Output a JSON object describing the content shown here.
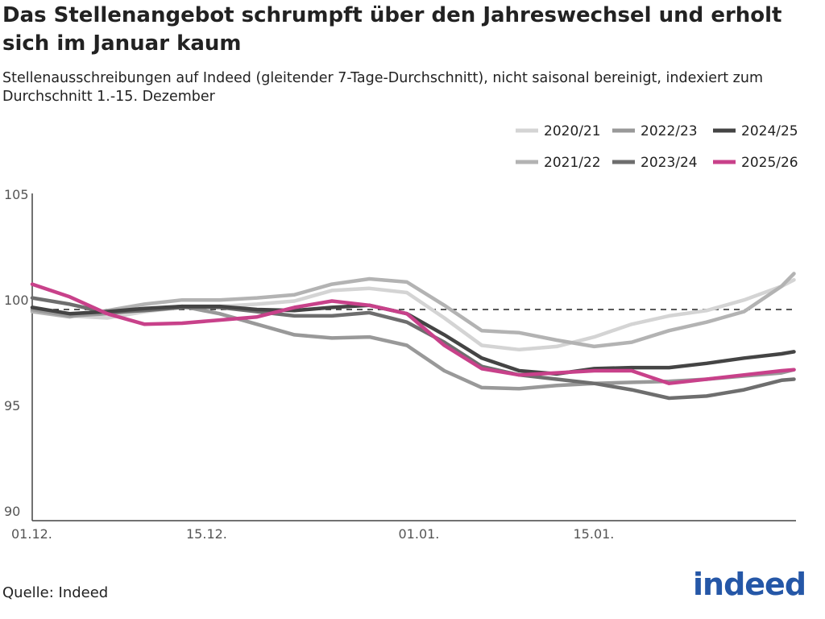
{
  "title": "Das Stellenangebot schrumpft über den Jahreswechsel und erholt sich im Januar kaum",
  "subtitle": "Stellenausschreibungen auf Indeed (gleitender 7-Tage-Durchschnitt), nicht saisonal bereinigt, indexiert zum Durchschnitt 1.-15. Dezember",
  "source": "Quelle: Indeed",
  "logo_text": "indeed",
  "colors": {
    "2020/21": "#d4d4d4",
    "2021/22": "#b3b3b3",
    "2022/23": "#999999",
    "2023/24": "#6e6e6e",
    "2024/25": "#444444",
    "2025/26": "#c8418a",
    "logo": "#2557a7"
  },
  "chart_data": {
    "type": "line",
    "title": "",
    "xlabel": "",
    "ylabel": "",
    "ylim": [
      90,
      105
    ],
    "yticks": [
      "90",
      "95",
      "100",
      "105"
    ],
    "xticks": [
      "01.12.",
      "15.12.",
      "01.01.",
      "15.01."
    ],
    "reference_line": 100,
    "grid": false,
    "legend_position": "top-right",
    "x": [
      "01.12.",
      "04.12.",
      "07.12.",
      "10.12.",
      "13.12.",
      "16.12.",
      "19.12.",
      "22.12.",
      "25.12.",
      "28.12.",
      "31.12.",
      "03.01.",
      "06.01.",
      "09.01.",
      "12.01.",
      "15.01.",
      "18.01.",
      "21.01.",
      "24.01.",
      "27.01.",
      "30.01.",
      "31.01."
    ],
    "series": [
      {
        "name": "2020/21",
        "values": [
          99.95,
          99.7,
          99.6,
          99.9,
          100.1,
          100.15,
          100.25,
          100.4,
          100.9,
          101.0,
          100.8,
          99.6,
          98.3,
          98.1,
          98.25,
          98.7,
          99.3,
          99.7,
          99.95,
          100.45,
          101.1,
          101.4
        ]
      },
      {
        "name": "2021/22",
        "values": [
          99.9,
          99.65,
          99.95,
          100.25,
          100.45,
          100.45,
          100.55,
          100.7,
          101.2,
          101.45,
          101.3,
          100.2,
          99.0,
          98.9,
          98.55,
          98.25,
          98.45,
          99.0,
          99.4,
          99.9,
          101.1,
          101.7
        ]
      },
      {
        "name": "2022/23",
        "values": [
          100.0,
          99.7,
          99.8,
          100.0,
          100.15,
          99.8,
          99.3,
          98.8,
          98.65,
          98.7,
          98.3,
          97.1,
          96.3,
          96.25,
          96.4,
          96.5,
          96.55,
          96.6,
          96.7,
          96.85,
          97.0,
          97.15
        ]
      },
      {
        "name": "2023/24",
        "values": [
          100.55,
          100.25,
          99.85,
          99.95,
          100.1,
          100.1,
          99.9,
          99.7,
          99.7,
          99.85,
          99.4,
          98.45,
          97.3,
          96.9,
          96.7,
          96.5,
          96.2,
          95.8,
          95.9,
          96.2,
          96.65,
          96.7
        ]
      },
      {
        "name": "2024/25",
        "values": [
          100.1,
          99.8,
          99.9,
          100.05,
          100.15,
          100.15,
          100.0,
          99.95,
          100.1,
          100.2,
          99.8,
          98.8,
          97.7,
          97.1,
          96.95,
          97.2,
          97.25,
          97.25,
          97.45,
          97.7,
          97.9,
          98.0
        ]
      },
      {
        "name": "2025/26",
        "values": [
          101.2,
          100.6,
          99.8,
          99.3,
          99.35,
          99.5,
          99.65,
          100.1,
          100.4,
          100.2,
          99.8,
          98.3,
          97.2,
          96.9,
          97.0,
          97.1,
          97.1,
          96.5,
          96.7,
          96.9,
          97.1,
          97.15
        ]
      }
    ]
  }
}
